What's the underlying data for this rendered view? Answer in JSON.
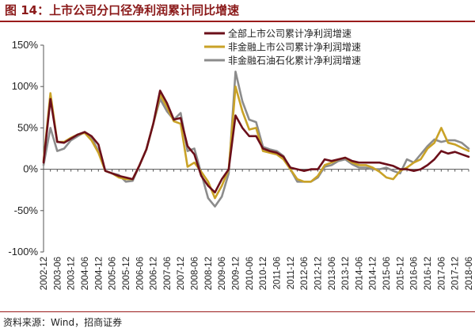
{
  "title": "图 14：上市公司分口径净利润累计同比增速",
  "source": "资料来源：Wind，招商证券",
  "chart_data": {
    "type": "line",
    "title": "图 14：上市公司分口径净利润累计同比增速",
    "xlabel": "",
    "ylabel": "",
    "ylim": [
      -100,
      150
    ],
    "yticks": [
      -100,
      -50,
      0,
      50,
      100,
      150
    ],
    "ytick_labels": [
      "-100%",
      "-50%",
      "0%",
      "50%",
      "100%",
      "150%"
    ],
    "grid": false,
    "legend_position": "top-right",
    "x_labels": [
      "2002-12",
      "2003-06",
      "2003-12",
      "2004-06",
      "2004-12",
      "2005-06",
      "2005-12",
      "2006-06",
      "2006-12",
      "2007-06",
      "2007-12",
      "2008-06",
      "2008-12",
      "2009-06",
      "2009-12",
      "2010-06",
      "2010-12",
      "2011-06",
      "2011-12",
      "2012-06",
      "2012-12",
      "2013-06",
      "2013-12",
      "2014-06",
      "2014-12",
      "2015-06",
      "2015-12",
      "2016-06",
      "2016-12",
      "2017-06",
      "2017-12",
      "2018-06"
    ],
    "x": [
      "2002-12",
      "2003-03",
      "2003-06",
      "2003-09",
      "2003-12",
      "2004-03",
      "2004-06",
      "2004-09",
      "2004-12",
      "2005-03",
      "2005-06",
      "2005-09",
      "2005-12",
      "2006-03",
      "2006-06",
      "2006-09",
      "2006-12",
      "2007-03",
      "2007-06",
      "2007-09",
      "2007-12",
      "2008-03",
      "2008-06",
      "2008-09",
      "2008-12",
      "2009-03",
      "2009-06",
      "2009-09",
      "2009-12",
      "2010-03",
      "2010-06",
      "2010-09",
      "2010-12",
      "2011-03",
      "2011-06",
      "2011-09",
      "2011-12",
      "2012-03",
      "2012-06",
      "2012-09",
      "2012-12",
      "2013-03",
      "2013-06",
      "2013-09",
      "2013-12",
      "2014-03",
      "2014-06",
      "2014-09",
      "2014-12",
      "2015-03",
      "2015-06",
      "2015-09",
      "2015-12",
      "2016-03",
      "2016-06",
      "2016-09",
      "2016-12",
      "2017-03",
      "2017-06",
      "2017-09",
      "2017-12",
      "2018-03",
      "2018-06"
    ],
    "series": [
      {
        "name": "全部上市公司累计净利润增速",
        "color": "#6b0f1a",
        "values": [
          8,
          85,
          33,
          32,
          37,
          42,
          45,
          40,
          30,
          -2,
          -5,
          -8,
          -10,
          -12,
          5,
          24,
          55,
          95,
          80,
          60,
          62,
          28,
          18,
          -8,
          -20,
          -28,
          -12,
          0,
          65,
          50,
          40,
          40,
          25,
          22,
          20,
          15,
          2,
          0,
          -2,
          0,
          0,
          12,
          10,
          12,
          14,
          10,
          8,
          8,
          8,
          8,
          6,
          4,
          0,
          0,
          -2,
          0,
          5,
          12,
          22,
          19,
          21,
          18,
          15
        ]
      },
      {
        "name": "非金融上市公司累计净利润增速",
        "color": "#c9a227",
        "values": [
          10,
          92,
          33,
          33,
          38,
          42,
          44,
          35,
          20,
          -2,
          -5,
          -10,
          -12,
          -12,
          5,
          24,
          55,
          90,
          75,
          58,
          55,
          3,
          8,
          -3,
          -15,
          -35,
          -20,
          0,
          100,
          70,
          48,
          50,
          22,
          20,
          18,
          12,
          0,
          -12,
          -15,
          -15,
          -8,
          5,
          8,
          12,
          14,
          8,
          5,
          5,
          2,
          -3,
          -10,
          -12,
          -2,
          2,
          8,
          12,
          25,
          32,
          50,
          32,
          30,
          26,
          22
        ]
      },
      {
        "name": "非金融石油石化累计净利润增速",
        "color": "#8c8c8c",
        "values": [
          5,
          50,
          22,
          25,
          35,
          40,
          45,
          38,
          22,
          -2,
          -5,
          -7,
          -15,
          -14,
          5,
          24,
          55,
          85,
          70,
          60,
          68,
          22,
          25,
          -5,
          -35,
          -45,
          -33,
          -5,
          118,
          82,
          60,
          57,
          27,
          24,
          22,
          16,
          0,
          -15,
          -15,
          -15,
          -10,
          3,
          5,
          10,
          12,
          6,
          2,
          2,
          0,
          0,
          2,
          -2,
          -5,
          12,
          8,
          18,
          28,
          36,
          33,
          35,
          35,
          32,
          25
        ]
      }
    ]
  }
}
